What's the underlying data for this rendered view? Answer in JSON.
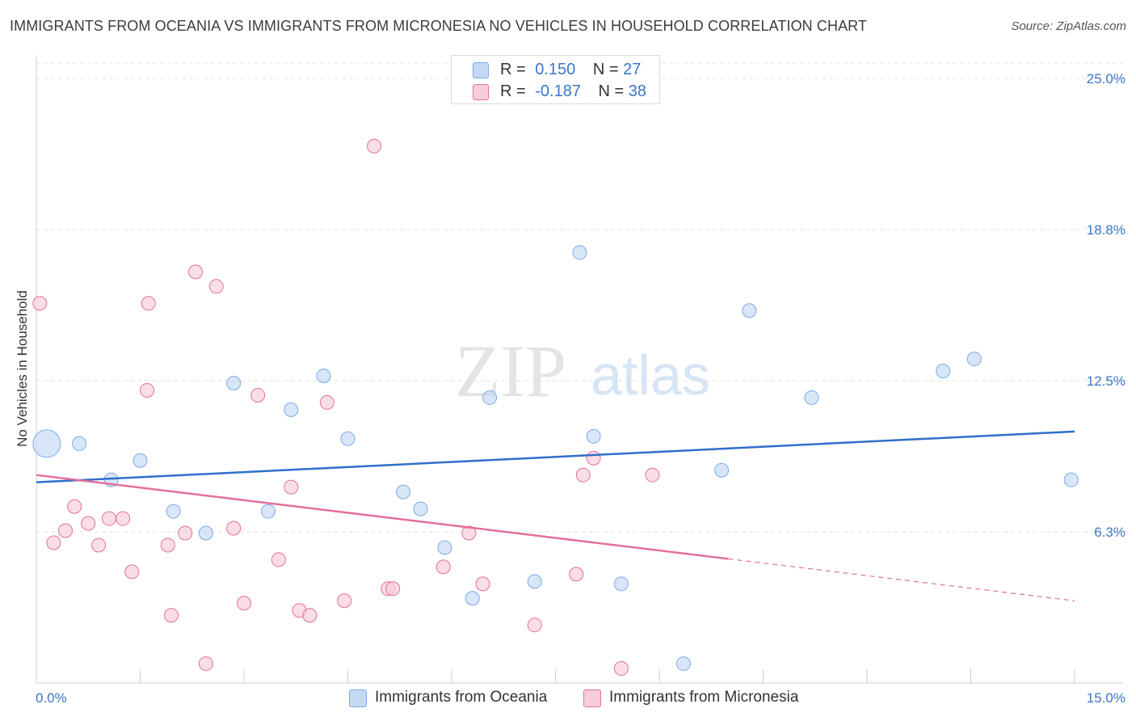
{
  "title": "IMMIGRANTS FROM OCEANIA VS IMMIGRANTS FROM MICRONESIA NO VEHICLES IN HOUSEHOLD CORRELATION CHART",
  "source": "Source: ZipAtlas.com",
  "watermark": {
    "zip": "ZIP",
    "atlas": "atlas"
  },
  "legend_top": [
    {
      "r_label": "R =",
      "r_value": "0.150",
      "n_label": "N =",
      "n_value": "27"
    },
    {
      "r_label": "R =",
      "r_value": "-0.187",
      "n_label": "N =",
      "n_value": "38"
    }
  ],
  "chart_data": {
    "type": "scatter",
    "title": "IMMIGRANTS FROM OCEANIA VS IMMIGRANTS FROM MICRONESIA NO VEHICLES IN HOUSEHOLD CORRELATION CHART",
    "xlabel": "",
    "ylabel": "No Vehicles in Household",
    "xlim": [
      0,
      15
    ],
    "ylim": [
      0,
      25.0
    ],
    "x_tick_labels": [
      "0.0%",
      "15.0%"
    ],
    "y_tick_labels": [
      "6.3%",
      "12.5%",
      "18.8%",
      "25.0%"
    ],
    "y_tick_values": [
      6.25,
      12.5,
      18.75,
      25.0
    ],
    "grid": true,
    "legend_position": "bottom",
    "series": [
      {
        "name": "Immigrants from Oceania",
        "color": "#7aaae6",
        "fill": "#c5d9f4",
        "r": "0.150",
        "n": "27",
        "trend": {
          "x": [
            0,
            15
          ],
          "y": [
            8.3,
            10.4
          ],
          "dashed_from": null
        },
        "points": [
          {
            "x": 0.15,
            "y": 9.9,
            "size": "large"
          },
          {
            "x": 0.62,
            "y": 9.9
          },
          {
            "x": 1.08,
            "y": 8.4
          },
          {
            "x": 1.5,
            "y": 9.2
          },
          {
            "x": 1.98,
            "y": 7.1
          },
          {
            "x": 2.45,
            "y": 6.2
          },
          {
            "x": 2.85,
            "y": 12.4
          },
          {
            "x": 3.35,
            "y": 7.1
          },
          {
            "x": 3.68,
            "y": 11.3
          },
          {
            "x": 4.15,
            "y": 12.7
          },
          {
            "x": 4.5,
            "y": 10.1
          },
          {
            "x": 5.3,
            "y": 7.9
          },
          {
            "x": 5.55,
            "y": 7.2
          },
          {
            "x": 5.9,
            "y": 5.6
          },
          {
            "x": 6.3,
            "y": 3.5
          },
          {
            "x": 6.55,
            "y": 11.8
          },
          {
            "x": 7.2,
            "y": 4.2
          },
          {
            "x": 7.85,
            "y": 17.8
          },
          {
            "x": 8.05,
            "y": 10.2
          },
          {
            "x": 8.45,
            "y": 4.1
          },
          {
            "x": 9.35,
            "y": 0.8
          },
          {
            "x": 9.9,
            "y": 8.8
          },
          {
            "x": 10.3,
            "y": 15.4
          },
          {
            "x": 11.2,
            "y": 11.8
          },
          {
            "x": 13.1,
            "y": 12.9
          },
          {
            "x": 13.55,
            "y": 13.4
          },
          {
            "x": 14.95,
            "y": 8.4
          }
        ]
      },
      {
        "name": "Immigrants from Micronesia",
        "color": "#e36f9c",
        "fill": "#f8ccda",
        "r": "-0.187",
        "n": "38",
        "trend": {
          "x": [
            0,
            15
          ],
          "y": [
            8.6,
            3.4
          ],
          "dashed_from": 10.0
        },
        "points": [
          {
            "x": 0.05,
            "y": 15.7
          },
          {
            "x": 0.25,
            "y": 5.8
          },
          {
            "x": 0.42,
            "y": 6.3
          },
          {
            "x": 0.55,
            "y": 7.3
          },
          {
            "x": 0.75,
            "y": 6.6
          },
          {
            "x": 0.9,
            "y": 5.7
          },
          {
            "x": 1.05,
            "y": 6.8
          },
          {
            "x": 1.25,
            "y": 6.8
          },
          {
            "x": 1.38,
            "y": 4.6
          },
          {
            "x": 1.6,
            "y": 12.1
          },
          {
            "x": 1.62,
            "y": 15.7
          },
          {
            "x": 1.9,
            "y": 5.7
          },
          {
            "x": 1.95,
            "y": 2.8
          },
          {
            "x": 2.15,
            "y": 6.2
          },
          {
            "x": 2.3,
            "y": 17.0
          },
          {
            "x": 2.45,
            "y": 0.8
          },
          {
            "x": 2.6,
            "y": 16.4
          },
          {
            "x": 2.85,
            "y": 6.4
          },
          {
            "x": 3.0,
            "y": 3.3
          },
          {
            "x": 3.2,
            "y": 11.9
          },
          {
            "x": 3.5,
            "y": 5.1
          },
          {
            "x": 3.68,
            "y": 8.1
          },
          {
            "x": 3.8,
            "y": 3.0
          },
          {
            "x": 3.95,
            "y": 2.8
          },
          {
            "x": 4.2,
            "y": 11.6
          },
          {
            "x": 4.45,
            "y": 3.4
          },
          {
            "x": 4.88,
            "y": 22.2
          },
          {
            "x": 5.08,
            "y": 3.9
          },
          {
            "x": 5.15,
            "y": 3.9
          },
          {
            "x": 5.88,
            "y": 4.8
          },
          {
            "x": 6.25,
            "y": 6.2
          },
          {
            "x": 6.45,
            "y": 4.1
          },
          {
            "x": 7.2,
            "y": 2.4
          },
          {
            "x": 7.8,
            "y": 4.5
          },
          {
            "x": 7.9,
            "y": 8.6
          },
          {
            "x": 8.05,
            "y": 9.3
          },
          {
            "x": 8.45,
            "y": 0.6
          },
          {
            "x": 8.9,
            "y": 8.6
          }
        ]
      }
    ]
  }
}
